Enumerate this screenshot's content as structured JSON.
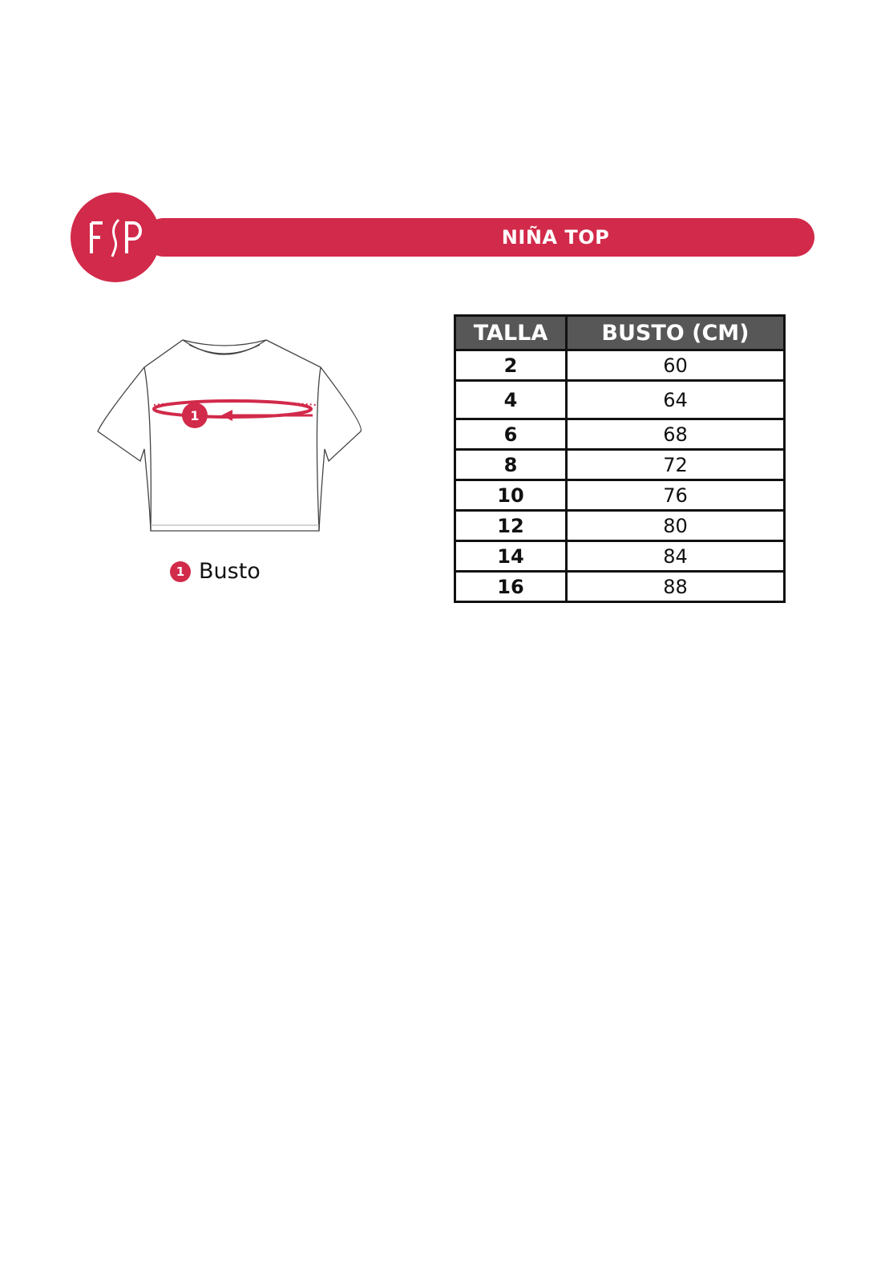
{
  "header": {
    "title": "NIÑA TOP",
    "brand_logo": "FSP",
    "accent_color": "#d22a4a"
  },
  "diagram": {
    "marker": "1",
    "legend": {
      "number": "1",
      "label": "Busto"
    }
  },
  "table": {
    "headers": [
      "TALLA",
      "BUSTO (CM)"
    ],
    "rows": [
      [
        "2",
        "60"
      ],
      [
        "4",
        "64"
      ],
      [
        "6",
        "68"
      ],
      [
        "8",
        "72"
      ],
      [
        "10",
        "76"
      ],
      [
        "12",
        "80"
      ],
      [
        "14",
        "84"
      ],
      [
        "16",
        "88"
      ]
    ]
  }
}
